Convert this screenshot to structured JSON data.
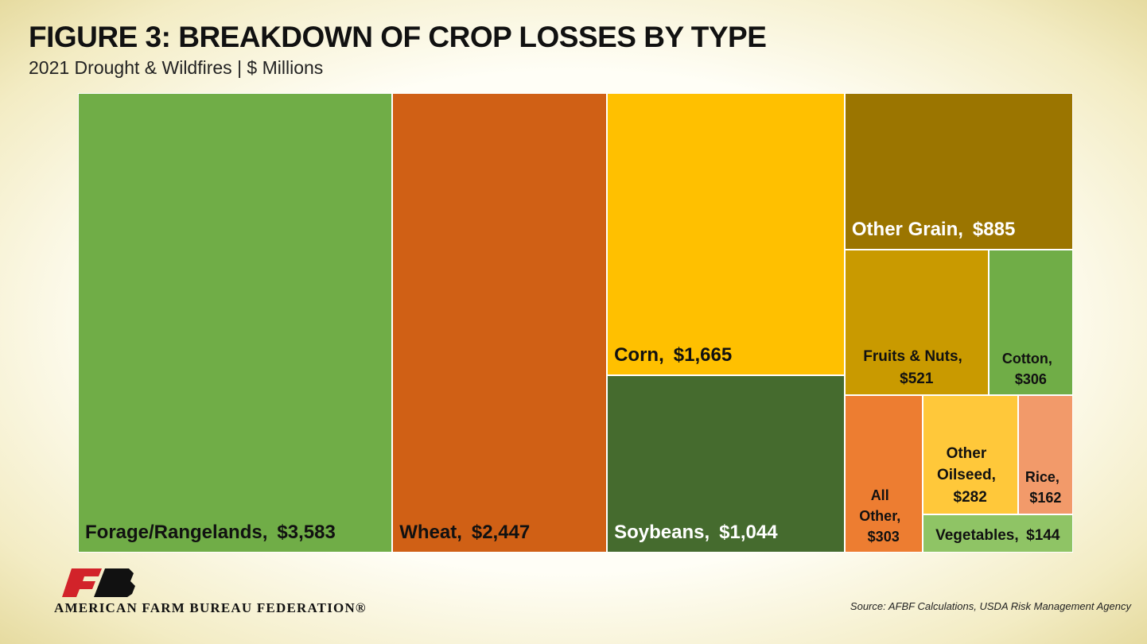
{
  "chart_data": {
    "type": "treemap",
    "title": "FIGURE 3: BREAKDOWN OF CROP LOSSES BY TYPE",
    "subtitle": "2021 Drought & Wildfires | $ Millions",
    "categories": [
      "Forage/Rangelands,",
      "Wheat,",
      "Corn,",
      "Soybeans,",
      "Other Grain,",
      "Fruits & Nuts,",
      "Cotton,",
      "All Other,",
      "Other Oilseed,",
      "Rice,",
      "Vegetables,"
    ],
    "values": [
      3583,
      2447,
      1665,
      1044,
      885,
      521,
      306,
      303,
      282,
      162,
      144
    ],
    "value_labels": [
      "$3,583",
      "$2,447",
      "$1,665",
      "$1,044",
      "$885",
      "$521",
      "$306",
      "$303",
      "$282",
      "$162",
      "$144"
    ],
    "colors": [
      "#70ad47",
      "#d06015",
      "#ffc000",
      "#456b2e",
      "#9b7500",
      "#c99a00",
      "#70ad47",
      "#ed7d31",
      "#ffc83a",
      "#f29a6a",
      "#8fc465"
    ],
    "source": "Source: AFBF Calculations, USDA Risk Management Agency",
    "organization": "AMERICAN FARM BUREAU FEDERATION®"
  }
}
